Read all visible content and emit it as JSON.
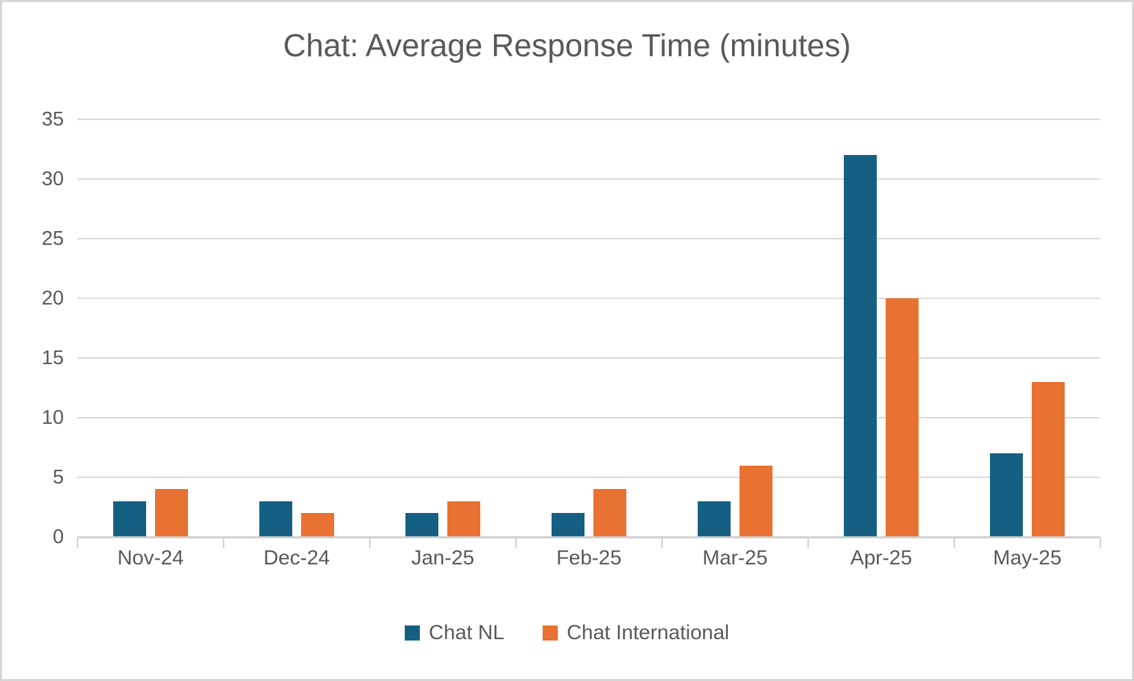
{
  "chart_data": {
    "type": "bar",
    "title": "Chat: Average Response Time (minutes)",
    "categories": [
      "Nov-24",
      "Dec-24",
      "Jan-25",
      "Feb-25",
      "Mar-25",
      "Apr-25",
      "May-25"
    ],
    "series": [
      {
        "name": "Chat NL",
        "color": "#156082",
        "values": [
          3,
          3,
          2,
          2,
          3,
          32,
          7
        ]
      },
      {
        "name": "Chat International",
        "color": "#E97132",
        "values": [
          4,
          2,
          3,
          4,
          6,
          20,
          13
        ]
      }
    ],
    "xlabel": "",
    "ylabel": "",
    "ylim": [
      0,
      35
    ],
    "yticks": [
      0,
      5,
      10,
      15,
      20,
      25,
      30,
      35
    ],
    "grid": true,
    "legend_position": "bottom"
  },
  "colors": {
    "series_1": "#156082",
    "series_2": "#E97132",
    "title_text": "#595959",
    "axis_text": "#595959",
    "gridline": "#D9D9D9",
    "axis_line": "#CFCFCF",
    "background": "#FFFFFF",
    "border": "#D6D6D6"
  }
}
